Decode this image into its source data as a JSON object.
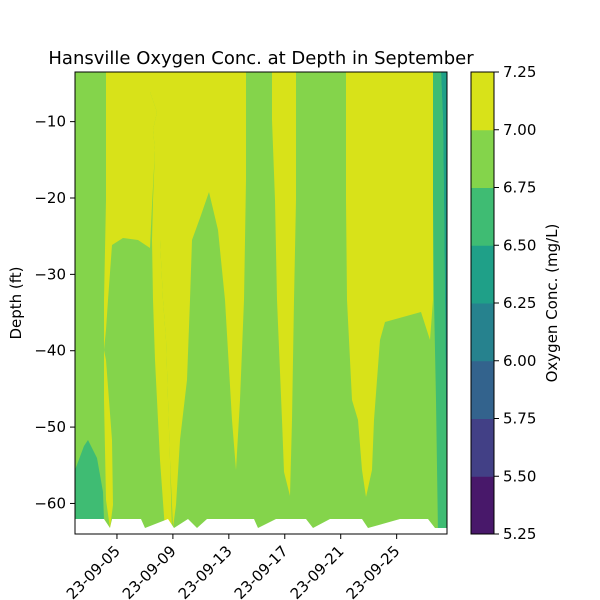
{
  "chart_data": {
    "type": "contourf",
    "title": "Hansville Oxygen Conc. at Depth in September",
    "ylabel": "Depth (ft)",
    "xlabel": "",
    "x_axis": {
      "type": "date",
      "ticks": [
        "2023-09-05",
        "2023-09-09",
        "2023-09-13",
        "2023-09-17",
        "2023-09-21",
        "2023-09-25"
      ],
      "tick_labels_visible": [
        "23-09-05",
        "23-09-09",
        "23-09-13",
        "23-09-17",
        "23-09-21",
        "23-09-25"
      ],
      "range": [
        "2023-09-02",
        "2023-09-28.6"
      ]
    },
    "y_axis": {
      "ticks": [
        -10,
        -20,
        -30,
        -40,
        -50,
        -60
      ],
      "tick_labels": [
        "−10",
        "−20",
        "−30",
        "−40",
        "−50",
        "−60"
      ],
      "range": [
        -64,
        -3.5
      ]
    },
    "colorbar": {
      "label": "Oxygen Conc. (mg/L)",
      "levels": [
        5.25,
        5.5,
        5.75,
        6.0,
        6.25,
        6.5,
        6.75,
        7.0,
        7.25
      ],
      "tick_labels": [
        "5.25",
        "5.50",
        "5.75",
        "6.00",
        "6.25",
        "6.50",
        "6.75",
        "7.00",
        "7.25"
      ],
      "colors": [
        "#48186a",
        "#424086",
        "#33638d",
        "#26828e",
        "#1fa088",
        "#3fbc73",
        "#84d44b",
        "#d8e219"
      ]
    },
    "field": {
      "background_level": "6.75-7.00",
      "high_regions": [
        {
          "name": "high-region-1",
          "level": "7.00-7.25"
        },
        {
          "name": "high-region-2",
          "level": "7.00-7.25"
        },
        {
          "name": "high-region-3",
          "level": "7.00-7.25"
        },
        {
          "name": "high-region-4",
          "level": "7.00-7.25"
        },
        {
          "name": "high-region-5",
          "level": "7.00-7.25"
        }
      ],
      "low_regions": [
        {
          "name": "low-region-bottom-left",
          "level": "6.50-6.75"
        },
        {
          "name": "low-region-right-edge",
          "level": "6.25-6.50"
        }
      ],
      "missing_data_at_bottom": true
    }
  }
}
